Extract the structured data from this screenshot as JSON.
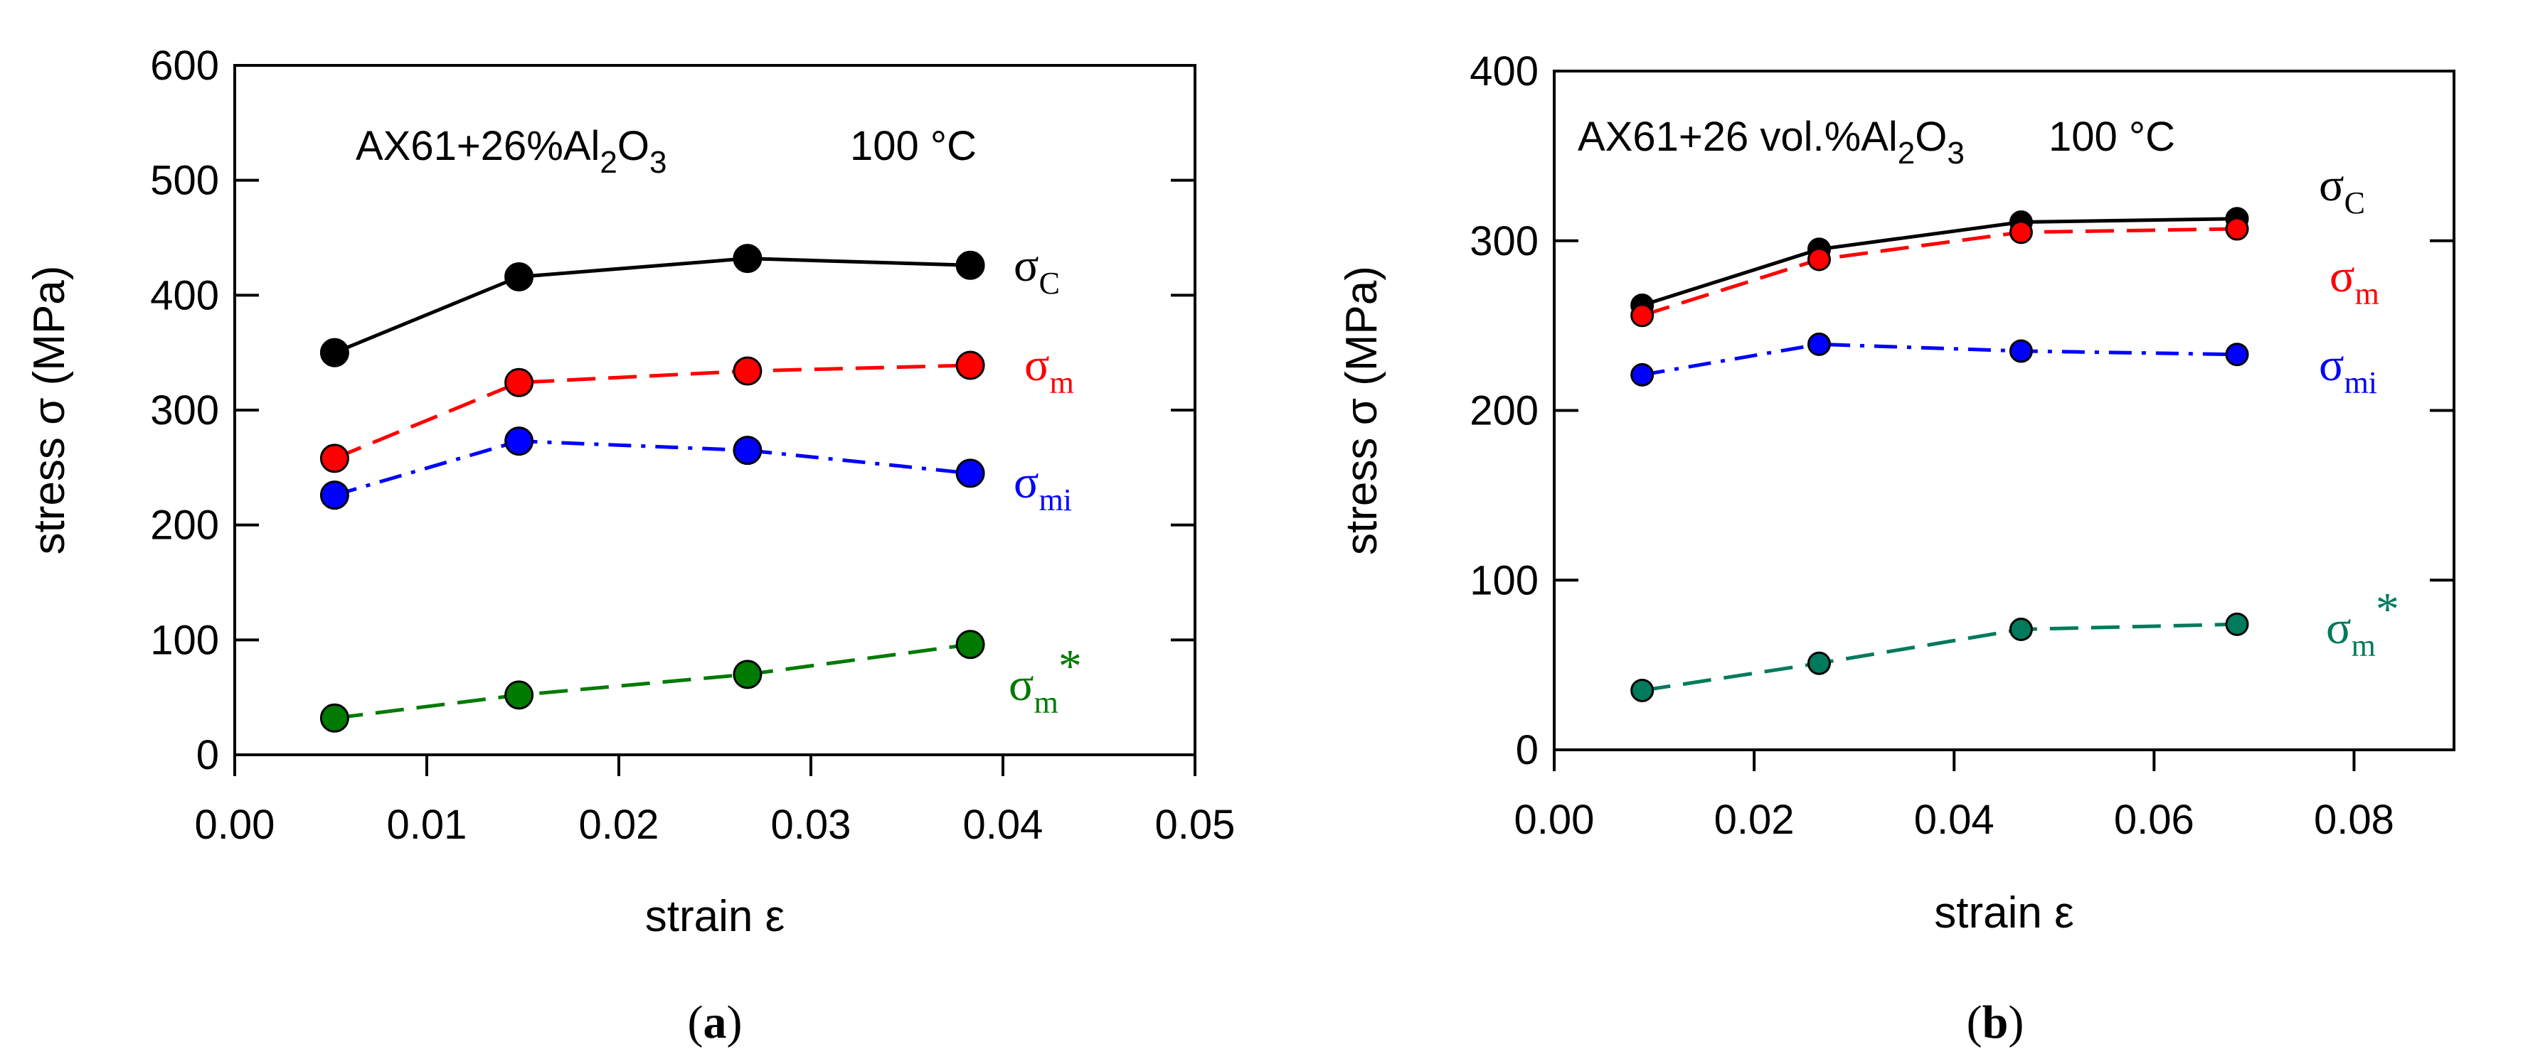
{
  "chart_data": [
    {
      "type": "line",
      "panel": "a",
      "caption_open": "(",
      "caption_letter": "a",
      "caption_close": ")",
      "annotation": {
        "material_prefix": "AX61+26%Al",
        "material_sub1": "2",
        "material_mid": "O",
        "material_sub2": "3",
        "temperature": "100 °C"
      },
      "xlabel": "strain ε",
      "ylabel": "stress σ (MPa)",
      "xlim": [
        0,
        0.05
      ],
      "ylim": [
        0,
        600
      ],
      "xticks": [
        0,
        0.01,
        0.02,
        0.03,
        0.04,
        0.05
      ],
      "xtick_labels": [
        "0.00",
        "0.01",
        "0.02",
        "0.03",
        "0.04",
        "0.05"
      ],
      "yticks": [
        0,
        100,
        200,
        300,
        400,
        500,
        600
      ],
      "ytick_labels": [
        "0",
        "100",
        "200",
        "300",
        "400",
        "500",
        "600"
      ],
      "x": [
        0.0052,
        0.0148,
        0.0267,
        0.0383
      ],
      "series": [
        {
          "name": "σC",
          "symbol": "σ",
          "sub": "C",
          "sup": "",
          "color": "#000000",
          "dash": "solid",
          "values": [
            350,
            416,
            432,
            426
          ]
        },
        {
          "name": "σm",
          "symbol": "σ",
          "sub": "m",
          "sup": "",
          "color": "#ff0000",
          "dash": "dashed",
          "values": [
            258,
            324,
            334,
            339
          ]
        },
        {
          "name": "σmi",
          "symbol": "σ",
          "sub": "mi",
          "sup": "",
          "color": "#0000ff",
          "dash": "dashdot",
          "values": [
            226,
            273,
            265,
            245
          ]
        },
        {
          "name": "σm*",
          "symbol": "σ",
          "sub": "m",
          "sup": "*",
          "color": "#007a00",
          "dash": "dashed",
          "values": [
            32,
            52,
            70,
            96
          ]
        }
      ]
    },
    {
      "type": "line",
      "panel": "b",
      "caption_open": "(",
      "caption_letter": "b",
      "caption_close": ")",
      "annotation": {
        "material_prefix": "AX61+26 vol.%Al",
        "material_sub1": "2",
        "material_mid": "O",
        "material_sub2": "3",
        "temperature": "100 °C"
      },
      "xlabel": "strain ε",
      "ylabel": "stress σ (MPa)",
      "xlim": [
        0,
        0.09
      ],
      "ylim": [
        0,
        400
      ],
      "xticks": [
        0,
        0.02,
        0.04,
        0.06,
        0.08
      ],
      "xtick_labels": [
        "0.00",
        "0.02",
        "0.04",
        "0.06",
        "0.08"
      ],
      "yticks": [
        0,
        100,
        200,
        300,
        400
      ],
      "ytick_labels": [
        "0",
        "100",
        "200",
        "300",
        "400"
      ],
      "x": [
        0.0088,
        0.0265,
        0.0467,
        0.0683
      ],
      "series": [
        {
          "name": "σC",
          "symbol": "σ",
          "sub": "C",
          "sup": "",
          "color": "#000000",
          "dash": "solid",
          "values": [
            262,
            295,
            311,
            313
          ]
        },
        {
          "name": "σm",
          "symbol": "σ",
          "sub": "m",
          "sup": "",
          "color": "#ff0000",
          "dash": "dashed",
          "values": [
            256,
            289,
            305,
            307
          ]
        },
        {
          "name": "σmi",
          "symbol": "σ",
          "sub": "mi",
          "sup": "",
          "color": "#0000ff",
          "dash": "dashdot",
          "values": [
            221,
            239,
            235,
            233
          ]
        },
        {
          "name": "σm*",
          "symbol": "σ",
          "sub": "m",
          "sup": "*",
          "color": "#007a5c",
          "dash": "dashed",
          "values": [
            35,
            51,
            71,
            74
          ]
        }
      ]
    }
  ]
}
